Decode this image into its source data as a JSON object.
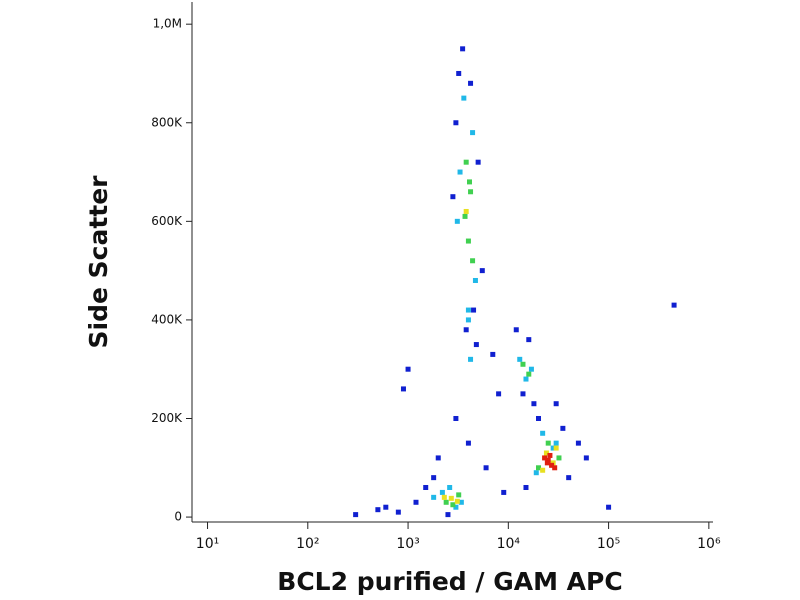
{
  "chart_data": {
    "type": "scatter",
    "x_label": "BCL2 purified / GAM APC",
    "y_label": "Side Scatter",
    "xscale": "log",
    "xlim": [
      7,
      1100000
    ],
    "ylim": [
      -10000,
      1045000
    ],
    "xticks": [
      {
        "value": 10,
        "label": "10¹"
      },
      {
        "value": 100,
        "label": "10²"
      },
      {
        "value": 1000,
        "label": "10³"
      },
      {
        "value": 10000,
        "label": "10⁴"
      },
      {
        "value": 100000,
        "label": "10⁵"
      },
      {
        "value": 1000000,
        "label": "10⁶"
      }
    ],
    "yticks": [
      0,
      {
        "value": 200000,
        "label": "200K"
      },
      {
        "value": 400000,
        "label": "400K"
      },
      {
        "value": 600000,
        "label": "600K"
      },
      {
        "value": 800000,
        "label": "800K"
      },
      {
        "value": 1000000,
        "label": "1,0M"
      }
    ],
    "series": [
      {
        "color": "#1020d0",
        "x": [
          3500,
          4200,
          3000,
          5000,
          4500,
          3800,
          2800,
          5500,
          3200,
          4800,
          12000,
          16000,
          14000,
          18000,
          20000,
          35000,
          40000,
          15000,
          30000,
          1500,
          1200,
          800,
          2000,
          4000,
          600,
          900,
          3000,
          6000,
          8000,
          7000,
          2500,
          500,
          300,
          1800,
          50000,
          60000,
          100000,
          450000,
          1000,
          9000
        ],
        "y": [
          950000,
          880000,
          800000,
          720000,
          420000,
          380000,
          650000,
          500000,
          900000,
          350000,
          380000,
          360000,
          250000,
          230000,
          200000,
          180000,
          80000,
          60000,
          230000,
          60000,
          30000,
          10000,
          120000,
          150000,
          20000,
          260000,
          200000,
          100000,
          250000,
          330000,
          5000,
          15000,
          5000,
          80000,
          150000,
          120000,
          20000,
          430000,
          300000,
          50000
        ]
      },
      {
        "color": "#20b8e8",
        "x": [
          3600,
          4400,
          3300,
          4700,
          4000,
          3100,
          4200,
          13000,
          15000,
          17000,
          22000,
          30000,
          19000,
          2200,
          3000,
          2600,
          1800,
          3400,
          4000,
          28000
        ],
        "y": [
          850000,
          780000,
          700000,
          480000,
          420000,
          600000,
          320000,
          320000,
          280000,
          300000,
          170000,
          150000,
          90000,
          50000,
          20000,
          60000,
          40000,
          30000,
          400000,
          140000
        ]
      },
      {
        "color": "#40d050",
        "x": [
          3800,
          4200,
          4000,
          3700,
          4400,
          14000,
          16000,
          25000,
          20000,
          32000,
          2400,
          3200,
          2800,
          4100
        ],
        "y": [
          720000,
          660000,
          560000,
          610000,
          520000,
          310000,
          290000,
          150000,
          100000,
          120000,
          30000,
          45000,
          25000,
          680000
        ]
      },
      {
        "color": "#e8e020",
        "x": [
          24000,
          28000,
          22000,
          30000,
          2700,
          3100,
          2300,
          3800
        ],
        "y": [
          130000,
          110000,
          95000,
          140000,
          38000,
          32000,
          40000,
          620000
        ]
      },
      {
        "color": "#e02010",
        "x": [
          25000,
          27000,
          23000,
          26000,
          29000,
          24500
        ],
        "y": [
          115000,
          105000,
          120000,
          125000,
          100000,
          110000
        ]
      }
    ]
  }
}
